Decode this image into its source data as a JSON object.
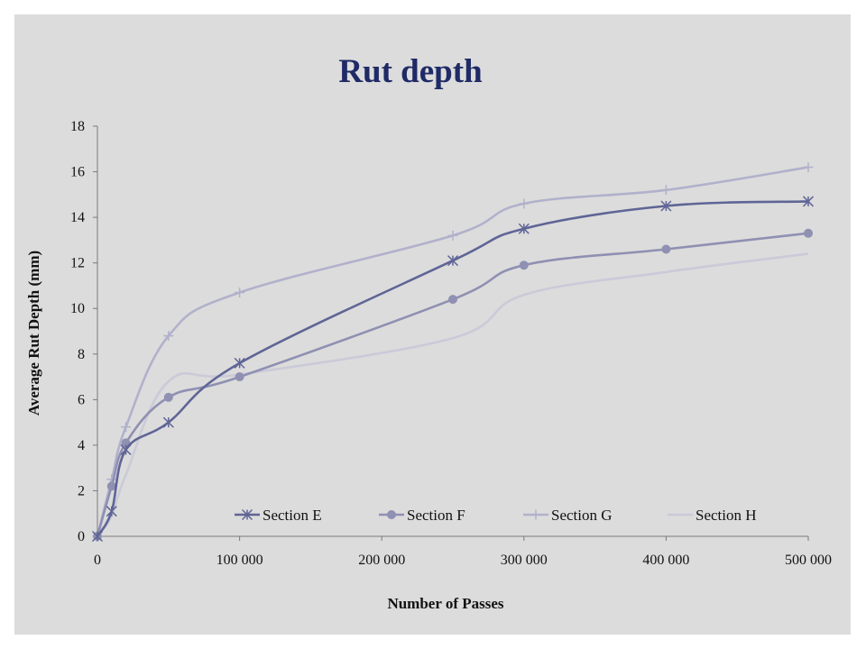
{
  "chart_data": {
    "type": "line",
    "title": "Rut depth",
    "xlabel": "Number of Passes",
    "ylabel": "Average Rut Depth (mm)",
    "xlim": [
      0,
      500000
    ],
    "ylim": [
      0,
      18
    ],
    "x_ticks": [
      0,
      100000,
      200000,
      300000,
      400000,
      500000
    ],
    "x_tick_labels": [
      "0",
      "100 000",
      "200 000",
      "300 000",
      "400 000",
      "500 000"
    ],
    "y_ticks": [
      0,
      2,
      4,
      6,
      8,
      10,
      12,
      14,
      16,
      18
    ],
    "y_tick_labels": [
      "0",
      "2",
      "4",
      "6",
      "8",
      "10",
      "12",
      "14",
      "16",
      "18"
    ],
    "grid": false,
    "legend_position": "bottom-inside",
    "series": [
      {
        "name": "Section E",
        "color": "#5f6596",
        "marker": "star",
        "x": [
          0,
          10000,
          20000,
          50000,
          100000,
          250000,
          300000,
          400000,
          500000
        ],
        "y": [
          0,
          1.1,
          3.8,
          5.0,
          7.6,
          12.1,
          13.5,
          14.5,
          14.7
        ]
      },
      {
        "name": "Section F",
        "color": "#8f90b2",
        "marker": "circle",
        "x": [
          0,
          10000,
          20000,
          50000,
          100000,
          250000,
          300000,
          400000,
          500000
        ],
        "y": [
          0,
          2.2,
          4.1,
          6.1,
          7.0,
          10.4,
          11.9,
          12.6,
          13.3
        ]
      },
      {
        "name": "Section G",
        "color": "#b1b1cc",
        "marker": "plus",
        "x": [
          0,
          10000,
          20000,
          50000,
          100000,
          250000,
          300000,
          400000,
          500000
        ],
        "y": [
          0,
          2.5,
          4.8,
          8.8,
          10.7,
          13.2,
          14.6,
          15.2,
          16.2
        ]
      },
      {
        "name": "Section H",
        "color": "#cacad9",
        "marker": "none",
        "x": [
          0,
          10000,
          20000,
          50000,
          100000,
          250000,
          300000,
          400000,
          500000
        ],
        "y": [
          0,
          0.9,
          2.7,
          6.8,
          7.1,
          8.7,
          10.6,
          11.6,
          12.4
        ]
      }
    ]
  }
}
